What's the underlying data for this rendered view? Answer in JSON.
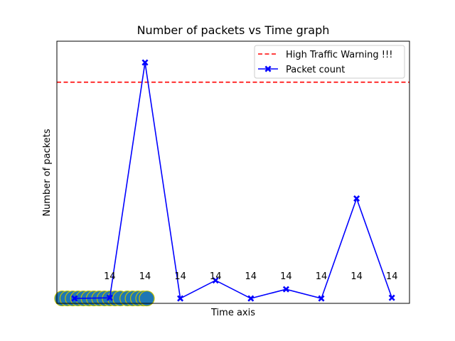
{
  "chart_data": {
    "type": "line",
    "title": "Number of packets vs Time graph",
    "xlabel": "Time axis",
    "ylabel": "Number of packets",
    "xticks_visible": false,
    "yticks_visible": false,
    "xlim": [
      -0.5,
      9.5
    ],
    "ylim": [
      -15,
      785
    ],
    "grid": false,
    "legend_position": "top-right",
    "threshold": {
      "name": "High Traffic Warning !!!",
      "value": 660,
      "style": "dashed",
      "color": "#ff0000"
    },
    "series": [
      {
        "name": "Packet count",
        "color": "#0000ff",
        "marker": "x",
        "x": [
          0,
          1,
          2,
          3,
          4,
          5,
          6,
          7,
          8,
          9
        ],
        "y": [
          0,
          2,
          720,
          0,
          55,
          0,
          28,
          0,
          305,
          2
        ]
      }
    ],
    "point_labels": [
      "14",
      "14",
      "14",
      "14",
      "14",
      "14",
      "14",
      "14",
      "14"
    ],
    "overlap_cluster": {
      "color": "#1f77b4",
      "edge_color": "#bfbf00",
      "x": [
        -0.35,
        -0.2,
        -0.05,
        0.1,
        0.25,
        0.4,
        0.55,
        0.7,
        0.85,
        1.0,
        1.15,
        1.3,
        1.5,
        1.65,
        1.8,
        1.95,
        2.05
      ],
      "y": 0
    }
  }
}
